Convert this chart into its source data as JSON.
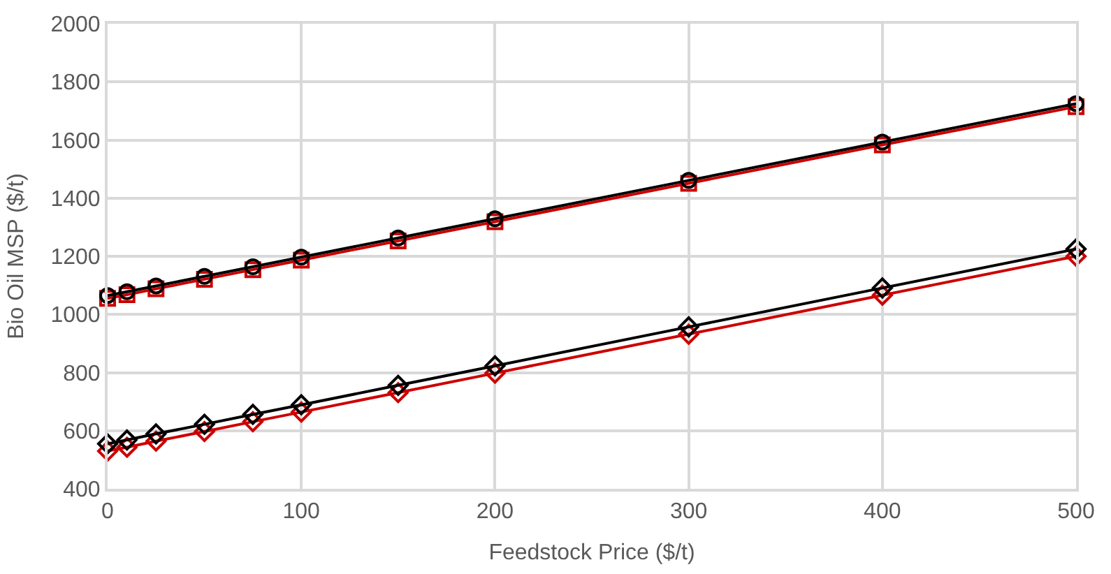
{
  "chart_data": {
    "type": "line",
    "xlabel": "Feedstock Price ($/t)",
    "ylabel": "Bio Oil MSP ($/t)",
    "x": [
      0,
      10,
      25,
      50,
      75,
      100,
      150,
      200,
      300,
      400,
      500
    ],
    "xlim": [
      0,
      500
    ],
    "xticks": [
      0,
      100,
      200,
      300,
      400,
      500
    ],
    "ylim": [
      400,
      2000
    ],
    "yticks": [
      400,
      600,
      800,
      1000,
      1200,
      1400,
      1600,
      1800,
      2000
    ],
    "grid": true,
    "series": [
      {
        "color": "#cc0000",
        "marker": "square",
        "values": [
          1055,
          1068,
          1088,
          1121,
          1154,
          1187,
          1253,
          1319,
          1451,
          1583,
          1715
        ]
      },
      {
        "color": "#000000",
        "marker": "circle",
        "values": [
          1065,
          1078,
          1098,
          1131,
          1164,
          1197,
          1263,
          1329,
          1461,
          1593,
          1725
        ]
      },
      {
        "color": "#cc0000",
        "marker": "diamond",
        "values": [
          530,
          543,
          564,
          597,
          631,
          664,
          731,
          798,
          932,
          1066,
          1200
        ]
      },
      {
        "color": "#000000",
        "marker": "diamond",
        "values": [
          555,
          568,
          589,
          622,
          656,
          689,
          756,
          823,
          957,
          1091,
          1225
        ]
      }
    ]
  }
}
